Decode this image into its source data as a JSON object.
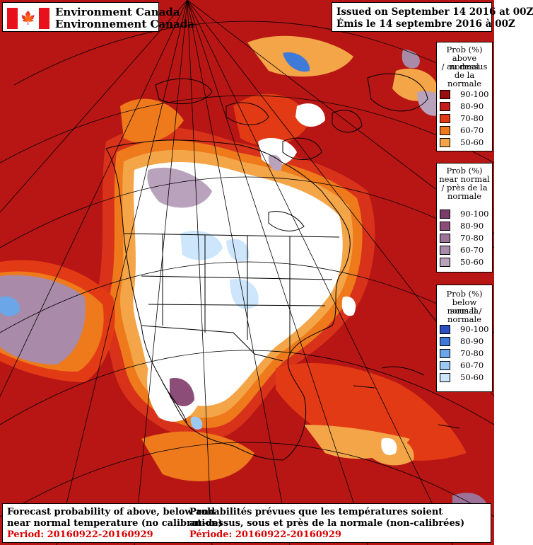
{
  "header": {
    "agency_en": "Environment Canada",
    "agency_fr": "Environnement Canada",
    "issued_en": "Issued on September 14 2016 at 00Z",
    "issued_fr": "Émis le 14 septembre 2016 à 00Z"
  },
  "legends": [
    {
      "title": [
        "Prob (%)",
        "above normal",
        "/ au dessus",
        "de la normale"
      ],
      "items": [
        {
          "label": "90-100",
          "color": "#9a0e10"
        },
        {
          "label": "80-90",
          "color": "#c41c1a"
        },
        {
          "label": "70-80",
          "color": "#e23a14"
        },
        {
          "label": "60-70",
          "color": "#ee7a1c"
        },
        {
          "label": "50-60",
          "color": "#f4a548"
        }
      ]
    },
    {
      "title": [
        "Prob (%)",
        "near normal",
        "/ près de la",
        "normale"
      ],
      "items": [
        {
          "label": "90-100",
          "color": "#7a3c68"
        },
        {
          "label": "80-90",
          "color": "#8c4e78"
        },
        {
          "label": "70-80",
          "color": "#9c7298"
        },
        {
          "label": "60-70",
          "color": "#a98aa8"
        },
        {
          "label": "50-60",
          "color": "#b9a2bb"
        }
      ]
    },
    {
      "title": [
        "Prob (%)",
        "below normal /",
        "sous la normale"
      ],
      "items": [
        {
          "label": "90-100",
          "color": "#2a4fc0"
        },
        {
          "label": "80-90",
          "color": "#3f7ad8"
        },
        {
          "label": "70-80",
          "color": "#6aa6e8"
        },
        {
          "label": "60-70",
          "color": "#9cc9f2"
        },
        {
          "label": "50-60",
          "color": "#cde6fb"
        }
      ]
    }
  ],
  "footer": {
    "en_line1": "Forecast probability of above, below and",
    "en_line2": "near normal temperature (no calibration)",
    "en_period": "Period: 20160922-20160929",
    "fr_line1": "Probabilités prévues que les températures soient",
    "fr_line2": "au-dessus, sous et près de la normale (non-calibrées)",
    "fr_period": "Période: 20160922-20160929"
  }
}
